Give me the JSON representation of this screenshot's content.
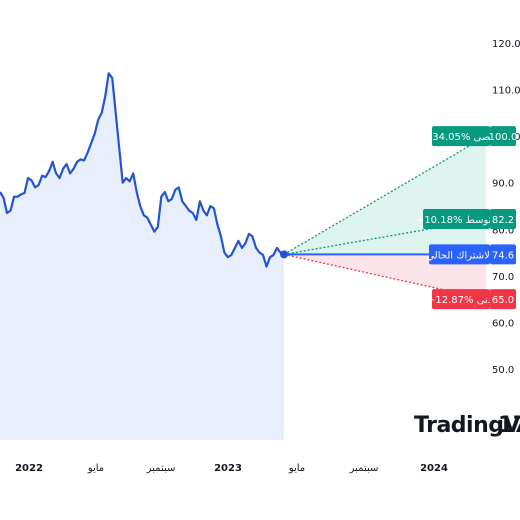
{
  "chart_data": {
    "type": "line",
    "title": "",
    "xlabel": "",
    "ylabel": "",
    "ylim": [
      50,
      121
    ],
    "y_ticks": [
      "120.0",
      "110.0",
      "100.0",
      "90.0",
      "80.0",
      "70.0",
      "60.0",
      "50.0"
    ],
    "x_ticks": [
      {
        "label": "2022",
        "bold": true
      },
      {
        "label": "مايو",
        "bold": false
      },
      {
        "label": "سبتمبر",
        "bold": false
      },
      {
        "label": "2023",
        "bold": true
      },
      {
        "label": "مايو",
        "bold": false
      },
      {
        "label": "سبتمبر",
        "bold": false
      },
      {
        "label": "2024",
        "bold": true
      }
    ],
    "series": [
      {
        "values": [
          88.0,
          86.8,
          83.5,
          84.0,
          87.0,
          87.0,
          87.5,
          87.8,
          91.0,
          90.5,
          89.0,
          89.5,
          91.5,
          91.2,
          92.5,
          94.5,
          92.0,
          91.0,
          93.0,
          94.0,
          92.0,
          93.0,
          94.5,
          95.0,
          94.8,
          96.5,
          98.5,
          100.5,
          103.5,
          105.0,
          108.5,
          113.5,
          112.5,
          105.0,
          97.5,
          90.0,
          91.0,
          90.3,
          92.0,
          88.0,
          85.0,
          83.0,
          82.5,
          81.0,
          79.5,
          80.5,
          87.0,
          88.0,
          86.0,
          86.5,
          88.5,
          89.0,
          86.0,
          85.0,
          84.0,
          83.5,
          82.0,
          86.0,
          84.0,
          83.0,
          85.0,
          84.5,
          81.0,
          78.5,
          75.0,
          74.0,
          74.5,
          76.0,
          77.5,
          76.0,
          77.0,
          79.0,
          78.5,
          76.0,
          75.0,
          74.5,
          72.0,
          74.0,
          74.5,
          76.0,
          75.0,
          74.6
        ]
      }
    ],
    "current": "74.6",
    "forecast": [
      {
        "key": "high",
        "value": "100.0",
        "value_num": 100.0,
        "tag": "+34.05% أقصى",
        "color": "#089981"
      },
      {
        "key": "avg",
        "value": "82.2",
        "value_num": 82.2,
        "tag": "+10.18% متوسط",
        "color": "#089981"
      },
      {
        "key": "cur",
        "value": "74.6",
        "value_num": 74.6,
        "tag": "الاشتراك الحالي",
        "color": "#2962FF"
      },
      {
        "key": "low",
        "value": "65.0",
        "value_num": 65.0,
        "tag": "−12.87% أدنى",
        "color": "#F23645"
      }
    ],
    "colors": {
      "line": "#2255D4",
      "fill": "#E8EEFB",
      "up_zone": "#DDF5EE",
      "down_zone": "#FDE3EA"
    }
  },
  "brand": {
    "logo_text": "TradingView",
    "logo_mark": "17"
  }
}
